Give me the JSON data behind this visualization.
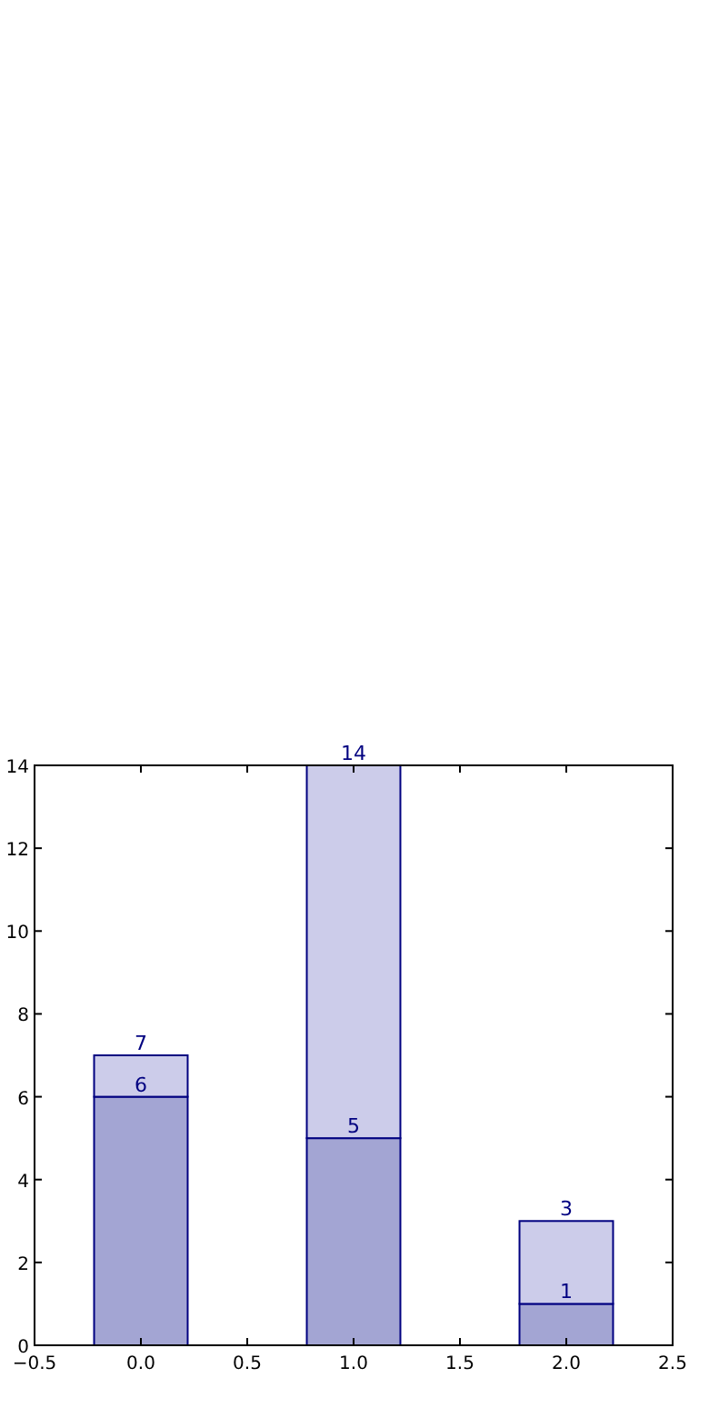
{
  "chart_data": {
    "type": "bar",
    "x": [
      0,
      1,
      2
    ],
    "stacked": true,
    "series": [
      {
        "color": "#a3a5d3",
        "values": [
          6,
          5,
          1
        ],
        "value_labels": [
          "6",
          "5",
          "1"
        ]
      },
      {
        "color": "#ccccea",
        "values": [
          1,
          9,
          2
        ]
      }
    ],
    "totals": [
      "7",
      "14",
      "3"
    ],
    "xlim": [
      -0.5,
      2.5
    ],
    "xticks": [
      {
        "value": -0.5,
        "label": "−0.5"
      },
      {
        "value": 0,
        "label": "0.0"
      },
      {
        "value": 0.5,
        "label": "0.5"
      },
      {
        "value": 1,
        "label": "1.0"
      },
      {
        "value": 1.5,
        "label": "1.5"
      },
      {
        "value": 2,
        "label": "2.0"
      },
      {
        "value": 2.5,
        "label": "2.5"
      }
    ],
    "ylim": [
      0,
      14
    ],
    "yticks": [
      0,
      2,
      4,
      6,
      8,
      10,
      12,
      14
    ]
  }
}
